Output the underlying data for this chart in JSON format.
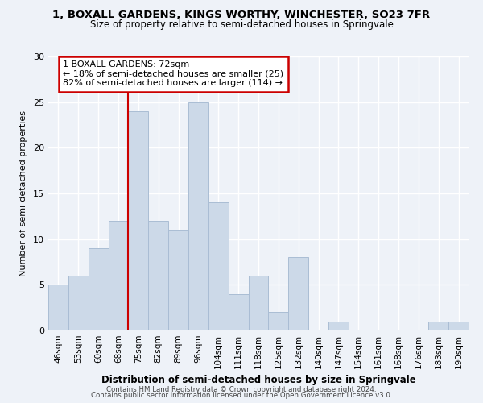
{
  "title_line1": "1, BOXALL GARDENS, KINGS WORTHY, WINCHESTER, SO23 7FR",
  "title_line2": "Size of property relative to semi-detached houses in Springvale",
  "xlabel": "Distribution of semi-detached houses by size in Springvale",
  "ylabel": "Number of semi-detached properties",
  "categories": [
    "46sqm",
    "53sqm",
    "60sqm",
    "68sqm",
    "75sqm",
    "82sqm",
    "89sqm",
    "96sqm",
    "104sqm",
    "111sqm",
    "118sqm",
    "125sqm",
    "132sqm",
    "140sqm",
    "147sqm",
    "154sqm",
    "161sqm",
    "168sqm",
    "176sqm",
    "183sqm",
    "190sqm"
  ],
  "values": [
    5,
    6,
    9,
    12,
    24,
    12,
    11,
    25,
    14,
    4,
    6,
    2,
    8,
    0,
    1,
    0,
    0,
    0,
    0,
    1,
    1
  ],
  "bar_color": "#ccd9e8",
  "bar_edge_color": "#aabdd4",
  "red_line_index": 3.5,
  "annotation_text": "1 BOXALL GARDENS: 72sqm\n← 18% of semi-detached houses are smaller (25)\n82% of semi-detached houses are larger (114) →",
  "annotation_box_color": "white",
  "annotation_box_edge_color": "#cc0000",
  "ylim": [
    0,
    30
  ],
  "yticks": [
    0,
    5,
    10,
    15,
    20,
    25,
    30
  ],
  "footer_line1": "Contains HM Land Registry data © Crown copyright and database right 2024.",
  "footer_line2": "Contains public sector information licensed under the Open Government Licence v3.0.",
  "background_color": "#eef2f8",
  "grid_color": "white"
}
